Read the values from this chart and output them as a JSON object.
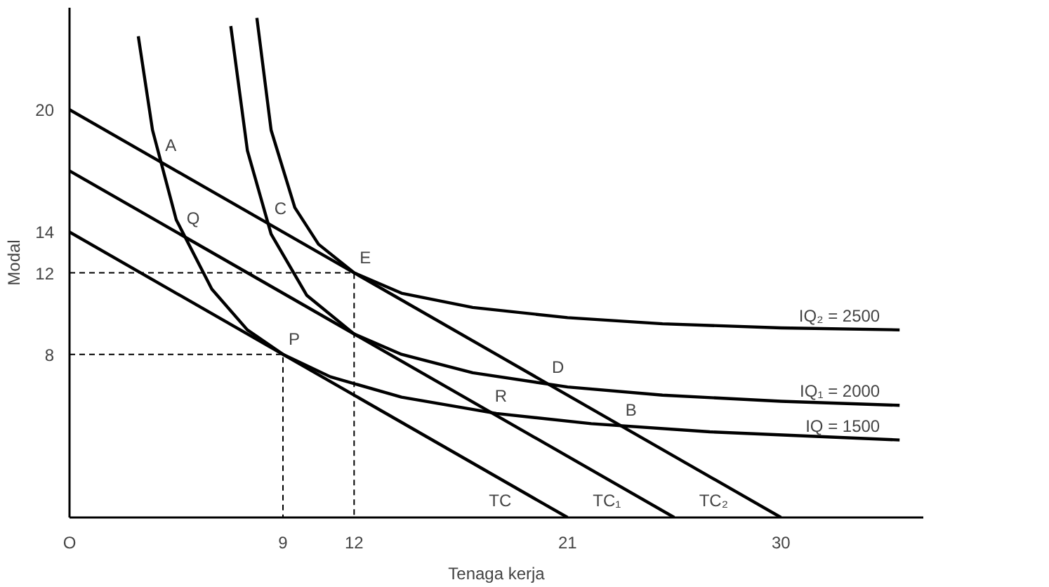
{
  "chart_data": {
    "type": "line",
    "xlabel": "Tenaga kerja",
    "ylabel": "Modal",
    "xlim": [
      0,
      36
    ],
    "ylim": [
      0,
      25
    ],
    "xticks": [
      {
        "value": 0,
        "label": "O"
      },
      9,
      12,
      21,
      30
    ],
    "yticks": [
      8,
      12,
      14,
      20
    ],
    "grid": false,
    "line_style": "solid",
    "series": [
      {
        "name": "IQ₂ = 2500",
        "color": "#000000",
        "x": [
          7.9,
          8.5,
          9.5,
          10.5,
          12,
          14,
          17,
          21,
          25,
          30,
          35
        ],
        "values": [
          24.5,
          19.0,
          15.2,
          13.4,
          12.0,
          11.0,
          10.3,
          9.8,
          9.5,
          9.3,
          9.2
        ]
      },
      {
        "name": "IQ₁ = 2000",
        "color": "#000000",
        "x": [
          6.8,
          7.5,
          8.5,
          10,
          12,
          14,
          17,
          21,
          25,
          30,
          35
        ],
        "values": [
          24.1,
          18.0,
          13.9,
          10.9,
          9.0,
          8.0,
          7.1,
          6.4,
          6.0,
          5.7,
          5.5
        ]
      },
      {
        "name": "IQ = 1500",
        "color": "#000000",
        "x": [
          2.9,
          3.5,
          4.5,
          6,
          7.5,
          9,
          11,
          14,
          18,
          22,
          27,
          35
        ],
        "values": [
          23.6,
          19.0,
          14.6,
          11.2,
          9.2,
          8.0,
          6.9,
          5.9,
          5.1,
          4.6,
          4.2,
          3.8
        ]
      },
      {
        "name": "TC",
        "color": "#000000",
        "x": [
          0,
          21
        ],
        "values": [
          14,
          0
        ]
      },
      {
        "name": "TC₁",
        "color": "#000000",
        "x": [
          0,
          25.5
        ],
        "values": [
          17,
          0
        ]
      },
      {
        "name": "TC₂",
        "color": "#000000",
        "x": [
          0,
          30
        ],
        "values": [
          20,
          0
        ]
      },
      {
        "color": "#000000",
        "line_style": "dashed",
        "x": [
          0,
          12,
          12
        ],
        "values": [
          12,
          12,
          0
        ]
      },
      {
        "color": "#000000",
        "line_style": "dashed",
        "x": [
          0,
          9,
          9
        ],
        "values": [
          8,
          8,
          0
        ]
      }
    ],
    "annotations": [
      {
        "text": "A",
        "x": 3.8,
        "y": 17.5
      },
      {
        "text": "C",
        "x": 8.4,
        "y": 14.4
      },
      {
        "text": "Q",
        "x": 4.7,
        "y": 13.9
      },
      {
        "text": "E",
        "x": 12,
        "y": 12
      },
      {
        "text": "P",
        "x": 9,
        "y": 8
      },
      {
        "text": "D",
        "x": 20.1,
        "y": 6.6
      },
      {
        "text": "R",
        "x": 17.7,
        "y": 5.2
      },
      {
        "text": "B",
        "x": 23.2,
        "y": 4.5
      }
    ]
  }
}
